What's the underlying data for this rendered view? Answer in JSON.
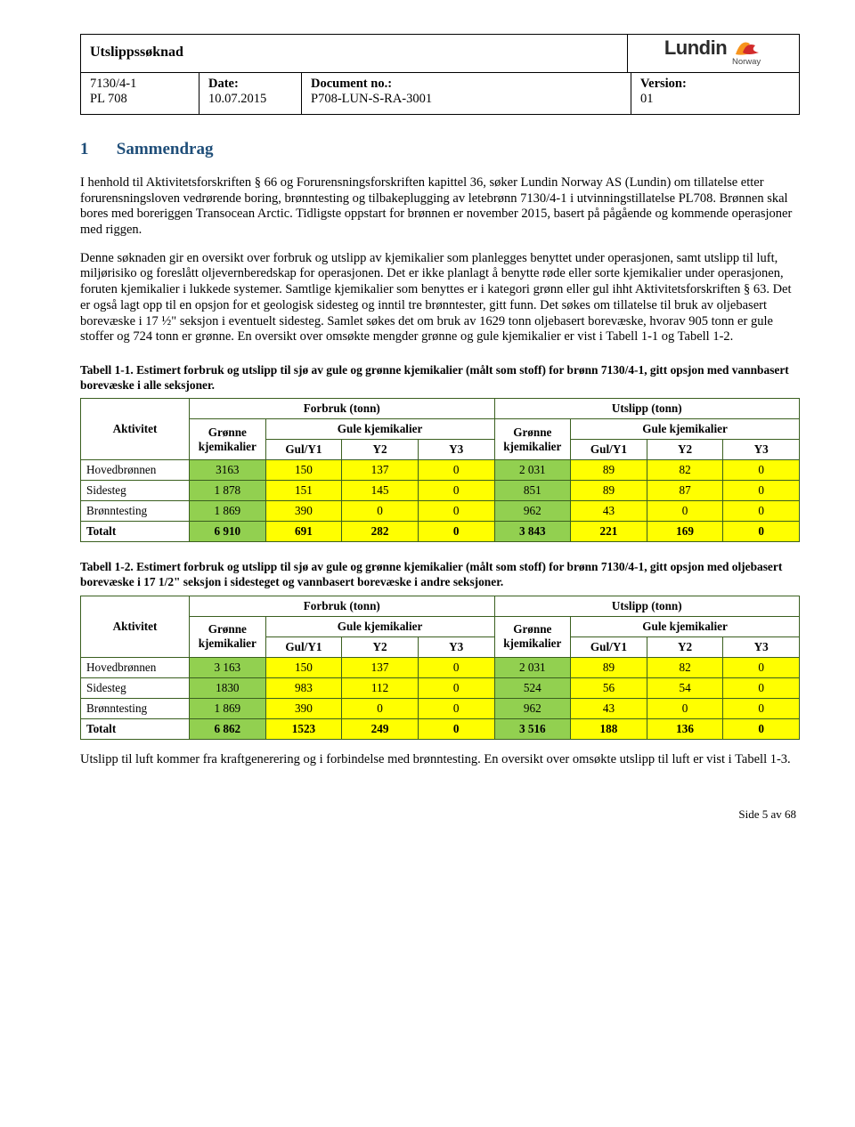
{
  "header": {
    "title": "Utslippssøknad",
    "ref1": "7130/4-1",
    "ref2": "PL 708",
    "date_label": "Date:",
    "date": "10.07.2015",
    "doc_label": "Document no.:",
    "doc": "P708-LUN-S-RA-3001",
    "ver_label": "Version:",
    "ver": "01",
    "logo_text": "Lundin",
    "logo_sub": "Norway"
  },
  "section": {
    "num": "1",
    "title": "Sammendrag"
  },
  "para1": "I henhold til Aktivitetsforskriften § 66 og Forurensningsforskriften kapittel 36, søker Lundin Norway AS (Lundin) om tillatelse etter forurensningsloven vedrørende boring, brønntesting og tilbakeplugging av letebrønn 7130/4-1 i utvinningstillatelse PL708. Brønnen skal bores med boreriggen Transocean Arctic. Tidligste oppstart for brønnen er november 2015, basert på pågående og kommende operasjoner med riggen.",
  "para2": "Denne søknaden gir en oversikt over forbruk og utslipp av kjemikalier som planlegges benyttet under operasjonen, samt utslipp til luft, miljørisiko og foreslått oljevernberedskap for operasjonen. Det er ikke planlagt å benytte røde eller sorte kjemikalier under operasjonen, foruten kjemikalier i lukkede systemer. Samtlige kjemikalier som benyttes er i kategori grønn eller gul ihht Aktivitetsforskriften § 63. Det er også lagt opp til en opsjon for et geologisk sidesteg og inntil tre brønntester, gitt funn. Det søkes om tillatelse til bruk av oljebasert borevæske i 17 ½\" seksjon i eventuelt sidesteg. Samlet søkes det om bruk av 1629 tonn oljebasert borevæske, hvorav 905 tonn er gule stoffer og 724 tonn er grønne. En oversikt over omsøkte mengder grønne og gule kjemikalier er vist i Tabell 1-1 og Tabell 1-2.",
  "para3": "Utslipp til luft kommer fra kraftgenerering og i forbindelse med brønntesting. En oversikt over omsøkte utslipp til luft er vist i Tabell 1-3.",
  "table_labels": {
    "aktivitet": "Aktivitet",
    "forbruk": "Forbruk (tonn)",
    "utslipp": "Utslipp (tonn)",
    "gronne": "Grønne kjemikalier",
    "gule": "Gule kjemikalier",
    "gul_y1": "Gul/Y1",
    "y2": "Y2",
    "y3": "Y3"
  },
  "table1": {
    "caption": "Tabell 1-1. Estimert forbruk og utslipp til sjø av gule og grønne kjemikalier (målt som stoff) for brønn 7130/4-1, gitt opsjon med vannbasert borevæske i alle seksjoner.",
    "rows": [
      {
        "a": "Hovedbrønnen",
        "fg": "3163",
        "fy1": "150",
        "fy2": "137",
        "fy3": "0",
        "ug": "2 031",
        "uy1": "89",
        "uy2": "82",
        "uy3": "0"
      },
      {
        "a": "Sidesteg",
        "fg": "1 878",
        "fy1": "151",
        "fy2": "145",
        "fy3": "0",
        "ug": "851",
        "uy1": "89",
        "uy2": "87",
        "uy3": "0"
      },
      {
        "a": "Brønntesting",
        "fg": "1 869",
        "fy1": "390",
        "fy2": "0",
        "fy3": "0",
        "ug": "962",
        "uy1": "43",
        "uy2": "0",
        "uy3": "0"
      },
      {
        "a": "Totalt",
        "fg": "6 910",
        "fy1": "691",
        "fy2": "282",
        "fy3": "0",
        "ug": "3 843",
        "uy1": "221",
        "uy2": "169",
        "uy3": "0"
      }
    ]
  },
  "table2": {
    "caption": "Tabell 1-2. Estimert forbruk og utslipp til sjø av gule og grønne kjemikalier (målt som stoff) for brønn 7130/4-1, gitt opsjon med oljebasert borevæske i 17 1/2\" seksjon i sidesteget og vannbasert borevæske i andre seksjoner.",
    "rows": [
      {
        "a": "Hovedbrønnen",
        "fg": "3 163",
        "fy1": "150",
        "fy2": "137",
        "fy3": "0",
        "ug": "2 031",
        "uy1": "89",
        "uy2": "82",
        "uy3": "0"
      },
      {
        "a": "Sidesteg",
        "fg": "1830",
        "fy1": "983",
        "fy2": "112",
        "fy3": "0",
        "ug": "524",
        "uy1": "56",
        "uy2": "54",
        "uy3": "0"
      },
      {
        "a": "Brønntesting",
        "fg": "1 869",
        "fy1": "390",
        "fy2": "0",
        "fy3": "0",
        "ug": "962",
        "uy1": "43",
        "uy2": "0",
        "uy3": "0"
      },
      {
        "a": "Totalt",
        "fg": "6 862",
        "fy1": "1523",
        "fy2": "249",
        "fy3": "0",
        "ug": "3 516",
        "uy1": "188",
        "uy2": "136",
        "uy3": "0"
      }
    ]
  },
  "footer": "Side 5 av 68",
  "colors": {
    "heading": "#1f4e79",
    "green": "#92d050",
    "yellow": "#ffff00",
    "table_border": "#3a5f1f"
  }
}
